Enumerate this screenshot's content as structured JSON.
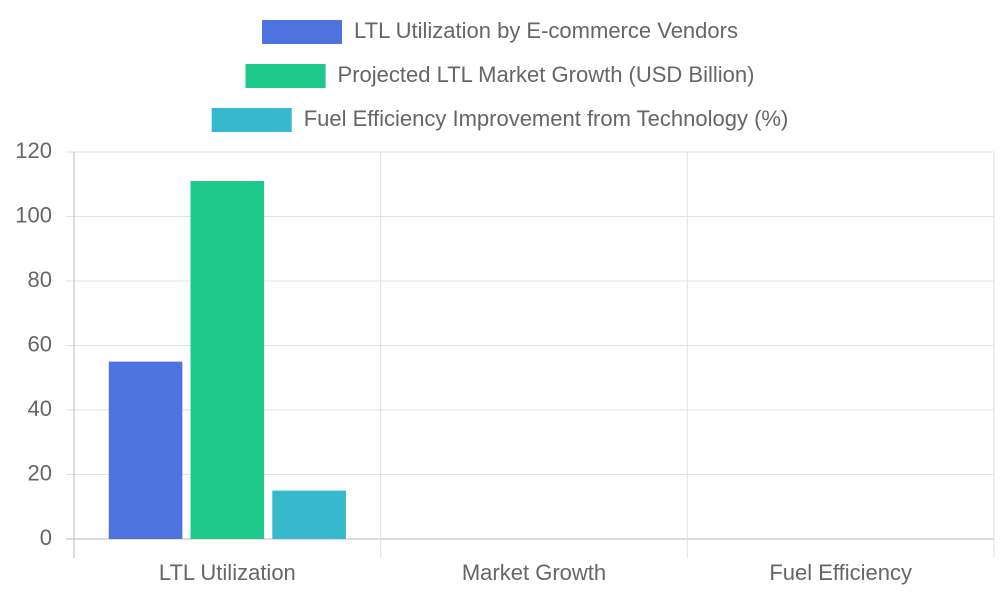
{
  "chart_data": {
    "type": "bar",
    "categories": [
      "LTL Utilization",
      "Market Growth",
      "Fuel Efficiency"
    ],
    "series": [
      {
        "name": "LTL Utilization by E-commerce Vendors",
        "color": "#4e73df",
        "values": [
          55,
          null,
          null
        ]
      },
      {
        "name": "Projected LTL Market Growth (USD Billion)",
        "color": "#1cc88a",
        "values": [
          111,
          null,
          null
        ]
      },
      {
        "name": "Fuel Efficiency Improvement from Technology (%)",
        "color": "#36b9cc",
        "values": [
          15,
          null,
          null
        ]
      }
    ],
    "ylim": [
      0,
      120
    ],
    "yticks": [
      0,
      20,
      40,
      60,
      80,
      100,
      120
    ],
    "grid": true,
    "legend": "top"
  }
}
